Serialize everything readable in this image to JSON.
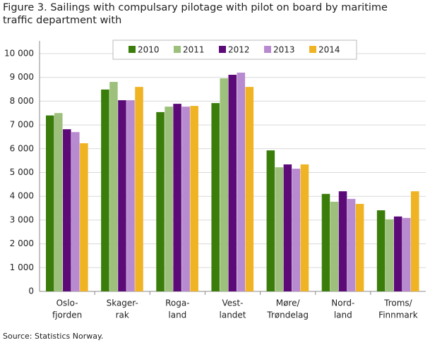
{
  "chart_data": {
    "type": "bar",
    "title": "Figure 3. Sailings with compulsary pilotage with pilot on board by maritime traffic department with",
    "source": "Source: Statistics Norway.",
    "categories": [
      [
        "Oslo-",
        "fjorden"
      ],
      [
        "Skager-",
        "rak"
      ],
      [
        "Roga-",
        "land"
      ],
      [
        "Vest-",
        "landet"
      ],
      [
        "Møre/",
        "Trøndelag"
      ],
      [
        "Nord-",
        "land"
      ],
      [
        "Troms/",
        "Finnmark"
      ]
    ],
    "series": [
      {
        "name": "2010",
        "color": "#3a7d0a",
        "values": [
          7400,
          8490,
          7540,
          7920,
          5930,
          4100,
          3410
        ]
      },
      {
        "name": "2011",
        "color": "#9dc17c",
        "values": [
          7500,
          8810,
          7770,
          8960,
          5220,
          3770,
          3030
        ]
      },
      {
        "name": "2012",
        "color": "#5c0a78",
        "values": [
          6820,
          8040,
          7890,
          9110,
          5340,
          4210,
          3150
        ]
      },
      {
        "name": "2013",
        "color": "#b88ad0",
        "values": [
          6700,
          8040,
          7770,
          9200,
          5160,
          3890,
          3090
        ]
      },
      {
        "name": "2014",
        "color": "#f0b323",
        "values": [
          6230,
          8600,
          7800,
          8600,
          5340,
          3680,
          4210
        ]
      }
    ],
    "ylim": [
      0,
      10000
    ],
    "yticks": [
      0,
      {
        "value": 1000,
        "label": "1 000"
      },
      {
        "value": 2000,
        "label": "2 000"
      },
      {
        "value": 3000,
        "label": "3 000"
      },
      {
        "value": 4000,
        "label": "4 000"
      },
      {
        "value": 5000,
        "label": "5 000"
      },
      {
        "value": 6000,
        "label": "6 000"
      },
      {
        "value": 7000,
        "label": "7 000"
      },
      {
        "value": 8000,
        "label": "8 000"
      },
      {
        "value": 9000,
        "label": "9 000"
      },
      {
        "value": 10000,
        "label": "10 000"
      }
    ],
    "grid": true,
    "legend": "top"
  }
}
